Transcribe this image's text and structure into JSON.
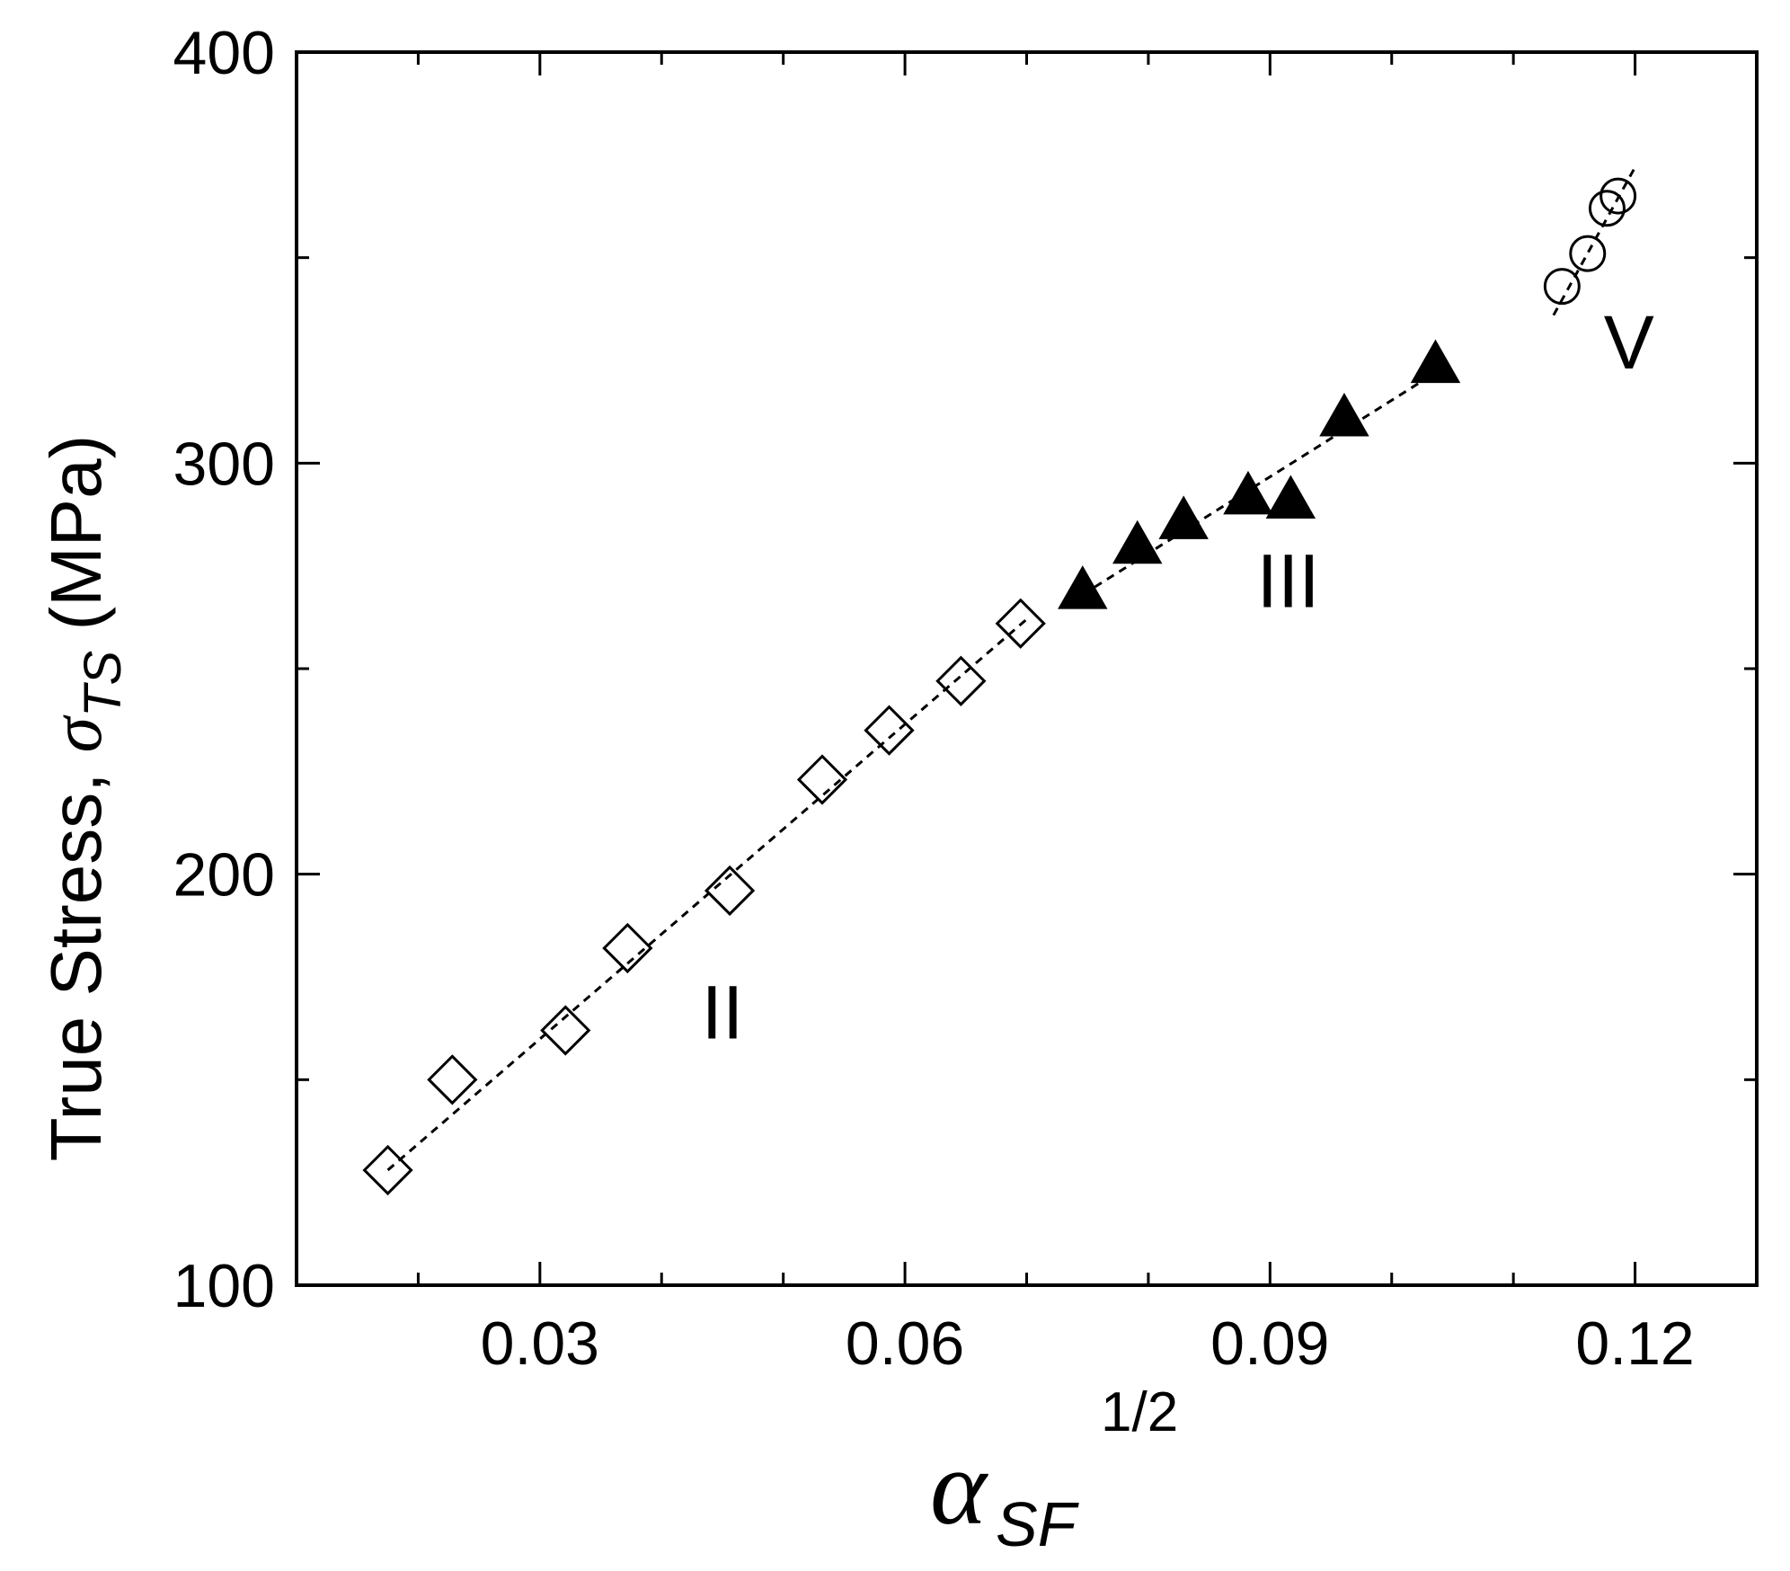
{
  "chart_data": {
    "type": "scatter",
    "title": "",
    "xlabel": {
      "symbol": "α",
      "subscript": "SF",
      "superscript": "1/2"
    },
    "ylabel": {
      "text": "True Stress, ",
      "symbol": "σ",
      "subscript": "TS",
      "unit": " (MPa)"
    },
    "xlim": [
      0.01,
      0.13
    ],
    "ylim": [
      100,
      400
    ],
    "x_ticks": [
      0.03,
      0.06,
      0.09,
      0.12
    ],
    "x_tick_labels": [
      "0.03",
      "0.06",
      "0.09",
      "0.12"
    ],
    "x_minor_ticks": [
      0.02,
      0.04,
      0.05,
      0.07,
      0.08,
      0.1,
      0.11
    ],
    "y_ticks": [
      100,
      200,
      300,
      400
    ],
    "y_tick_labels": [
      "100",
      "200",
      "300",
      "400"
    ],
    "y_minor_ticks": [
      150,
      250,
      350
    ],
    "grid": false,
    "series": [
      {
        "marker": "open-diamond",
        "x": [
          0.0175,
          0.0228,
          0.0321,
          0.0372,
          0.0456,
          0.0532,
          0.0587,
          0.0646,
          0.0695
        ],
        "y": [
          128,
          150,
          162,
          182,
          196,
          223,
          235,
          247,
          261
        ],
        "fit": {
          "x": [
            0.0175,
            0.07
          ],
          "y": [
            128,
            262
          ]
        }
      },
      {
        "marker": "filled-triangle",
        "x": [
          0.0746,
          0.0791,
          0.0829,
          0.0882,
          0.0917,
          0.0961,
          0.1036
        ],
        "y": [
          269,
          280,
          286,
          292,
          291,
          311,
          324
        ],
        "fit": {
          "x": [
            0.0746,
            0.1036
          ],
          "y": [
            268,
            322
          ]
        }
      },
      {
        "marker": "open-circle",
        "x": [
          0.114,
          0.1161,
          0.1177,
          0.1186
        ],
        "y": [
          343,
          351,
          362,
          365
        ],
        "fit": {
          "x": [
            0.1133,
            0.12
          ],
          "y": [
            336,
            372
          ]
        }
      }
    ],
    "annotations": [
      {
        "text": "II",
        "x": 0.045,
        "y": 160
      },
      {
        "text": "III",
        "x": 0.0915,
        "y": 265
      },
      {
        "text": "V",
        "x": 0.1195,
        "y": 323
      }
    ]
  }
}
